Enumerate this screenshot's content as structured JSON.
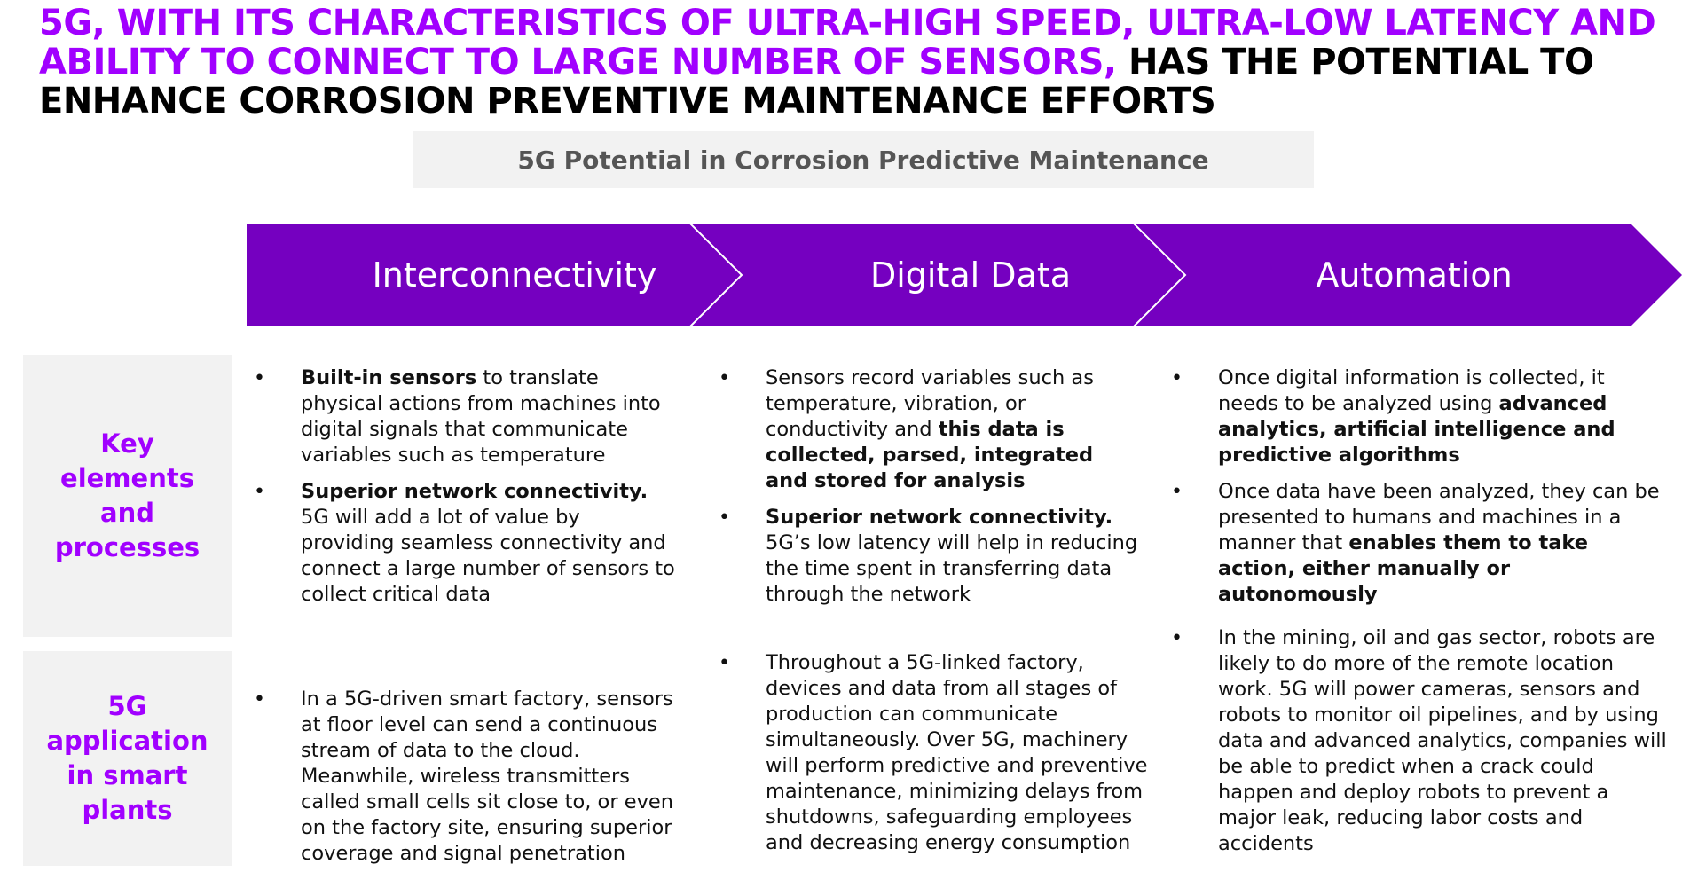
{
  "headline": {
    "purple": "5G, with its characteristics of ultra-high speed, ultra-low latency and ability to connect to large number of sensors,",
    "black": " has the potential to enhance corrosion preventive maintenance efforts"
  },
  "subtitle": "5G Potential in Corrosion Predictive Maintenance",
  "colors": {
    "accent": "#a100ff",
    "chevron": "#7500c0",
    "panel": "#f2f2f2"
  },
  "chevrons": [
    "Interconnectivity",
    "Digital Data",
    "Automation"
  ],
  "row_labels": {
    "key": "Key elements and processes",
    "app": "5G application in smart plants"
  },
  "key_elements": {
    "interconnectivity": [
      {
        "bold": "Built-in sensors",
        "text": " to translate physical actions from machines into digital signals that communicate variables such as temperature"
      },
      {
        "bold": "Superior network connectivity.",
        "text": " 5G will add a lot of value by providing seamless connectivity and connect a large number of sensors to collect critical data"
      }
    ],
    "digital_data": [
      {
        "text": "Sensors record variables such as temperature, vibration, or conductivity and ",
        "bold": "this data is collected, parsed, integrated and stored for analysis"
      },
      {
        "bold": "Superior network connectivity.",
        "text": " 5G’s low latency will help in reducing the time spent in transferring data through the network"
      }
    ],
    "automation": [
      {
        "text": "Once digital information is collected, it needs to be analyzed using ",
        "bold": "advanced analytics, artificial intelligence and predictive algorithms"
      },
      {
        "text": "Once data have been analyzed, they can be presented to humans and machines in a manner that ",
        "bold": "enables them to take action, either manually or autonomously"
      }
    ]
  },
  "applications": {
    "interconnectivity": "In a 5G-driven smart factory, sensors at floor level can send a continuous stream of data to the cloud. Meanwhile, wireless transmitters called small cells sit close to, or even on the factory site, ensuring superior coverage and signal penetration",
    "digital_data": "Throughout a 5G-linked factory, devices and data from all stages of production can communicate simultaneously. Over 5G, machinery will perform predictive and preventive maintenance, minimizing delays from shutdowns, safeguarding employees and decreasing energy consumption",
    "automation": "In the mining, oil and gas sector, robots are likely to do more of the remote location work. 5G will power cameras, sensors and robots to monitor oil pipelines, and by using data and advanced analytics, companies will be able to predict when a crack could happen and deploy robots to prevent a major leak, reducing labor costs and accidents"
  }
}
